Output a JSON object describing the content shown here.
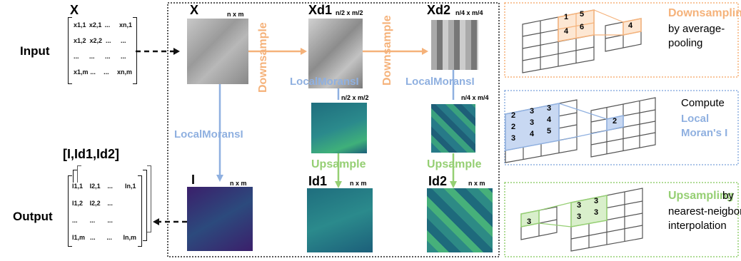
{
  "input": {
    "label": "Input",
    "matrix_title": "X",
    "rows": [
      [
        "x1,1",
        "x2,1",
        "...",
        "xn,1"
      ],
      [
        "x1,2",
        "x2,2",
        "...",
        "..."
      ],
      [
        "...",
        "...",
        "...",
        "..."
      ],
      [
        "x1,m",
        "...",
        "...",
        "xn,m"
      ]
    ]
  },
  "output": {
    "label": "Output",
    "matrix_title": "[I,Id1,Id2]",
    "rows": [
      [
        "I1,1",
        "I2,1",
        "...",
        "In,1"
      ],
      [
        "I1,2",
        "I2,2",
        "...",
        ""
      ],
      [
        "...",
        "...",
        "...",
        ""
      ],
      [
        "I1,m",
        "...",
        "...",
        "In,m"
      ]
    ]
  },
  "stages": {
    "x": {
      "name": "X",
      "size": "n x m"
    },
    "xd1": {
      "name": "Xd1",
      "size": "n/2 x m/2"
    },
    "xd2": {
      "name": "Xd2",
      "size": "n/4 x m/4"
    },
    "i": {
      "name": "I",
      "size": "n x m"
    },
    "id1": {
      "name": "Id1",
      "size": "n x m"
    },
    "id2": {
      "name": "Id2",
      "size": "n x m"
    },
    "lm1_size": "n/2 x m/2",
    "lm2_size": "n/4 x m/4"
  },
  "ops": {
    "downsample": "Downsample",
    "local_morans": "LocalMoransI",
    "upsample": "Upsample"
  },
  "panels": {
    "downsampling": {
      "title": "Downsampling",
      "desc": [
        "by average-",
        "pooling"
      ],
      "cells": [
        "1",
        "5",
        "4",
        "6"
      ],
      "result": "4"
    },
    "morans": {
      "line1": "Compute",
      "line2": "Local",
      "line3": "Moran's I",
      "cells": [
        "2",
        "3",
        "3",
        "2",
        "3",
        "4",
        "3",
        "4",
        "5"
      ],
      "result": "2"
    },
    "upsampling": {
      "title": "Upsampling",
      "desc1": " by",
      "desc2": "nearest-neigbor",
      "desc3": "interpolation",
      "src": "3",
      "cells": [
        "3",
        "3",
        "3",
        "3"
      ]
    }
  },
  "colors": {
    "orange": "#f5b27a",
    "blue": "#8fb0e0",
    "green": "#95cf73",
    "viridis_dark": "#3b1f6b",
    "teal": "#2a7f8e"
  }
}
